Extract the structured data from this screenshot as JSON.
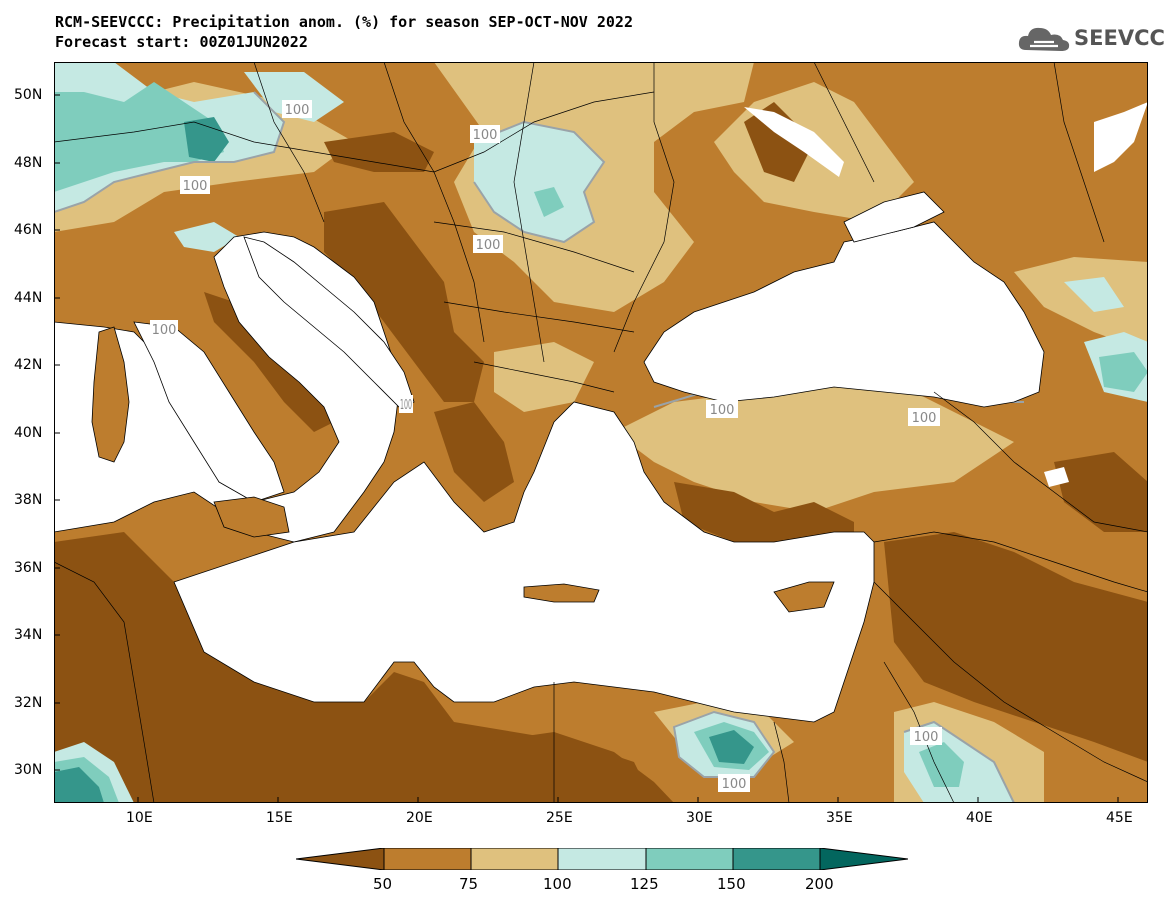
{
  "header": {
    "title_line1": "RCM-SEEVCCC: Precipitation anom. (%) for season SEP-OCT-NOV 2022",
    "title_line2": "Forecast start: 00Z01JUN2022"
  },
  "logo": {
    "text": "SEEVCCC",
    "icon": "cloud-icon"
  },
  "map": {
    "lon_labels": [
      "10E",
      "15E",
      "20E",
      "25E",
      "30E",
      "35E",
      "40E",
      "45E"
    ],
    "lat_labels": [
      "50N",
      "48N",
      "46N",
      "44N",
      "42N",
      "40N",
      "38N",
      "36N",
      "34N",
      "32N",
      "30N"
    ],
    "contour_labels": [
      "100",
      "100",
      "100",
      "100",
      "100",
      "100",
      "100",
      "100",
      "100",
      "100"
    ],
    "colors": {
      "lt50": "#8c5212",
      "50_75": "#bd7d2e",
      "75_100": "#dfc17e",
      "100_125": "#c5e9e3",
      "125_150": "#7fcdbd",
      "150_200": "#35968b",
      "gt200": "#03665e",
      "water": "#ffffff"
    }
  },
  "colorbar": {
    "ticks": [
      "50",
      "75",
      "100",
      "125",
      "150",
      "200"
    ],
    "colors": [
      "#8c5212",
      "#bd7d2e",
      "#dfc17e",
      "#c5e9e3",
      "#7fcdbd",
      "#35968b",
      "#03665e"
    ]
  }
}
